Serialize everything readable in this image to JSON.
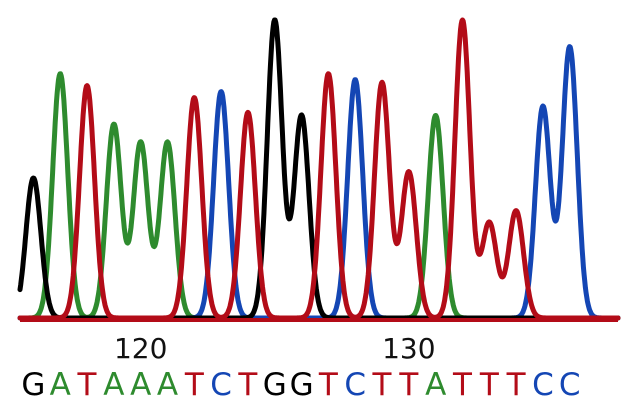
{
  "colors": {
    "A": "#2e8b2e",
    "T": "#b30c18",
    "C": "#1446b4",
    "G": "#000000"
  },
  "chart_data": {
    "type": "line",
    "title": "",
    "xlabel": "",
    "ylabel": "",
    "grid": false,
    "legend": "none",
    "xlim": [
      115.5,
      137.8
    ],
    "ylim": [
      0,
      1
    ],
    "position_labels": [
      {
        "position": 120,
        "text": "120"
      },
      {
        "position": 130,
        "text": "130"
      }
    ],
    "base_calls": [
      {
        "pos": 116,
        "base": "G",
        "peak": 0.47
      },
      {
        "pos": 117,
        "base": "A",
        "peak": 0.82
      },
      {
        "pos": 118,
        "base": "T",
        "peak": 0.78
      },
      {
        "pos": 119,
        "base": "A",
        "peak": 0.65
      },
      {
        "pos": 120,
        "base": "A",
        "peak": 0.59
      },
      {
        "pos": 121,
        "base": "A",
        "peak": 0.59
      },
      {
        "pos": 122,
        "base": "T",
        "peak": 0.74
      },
      {
        "pos": 123,
        "base": "C",
        "peak": 0.76
      },
      {
        "pos": 124,
        "base": "T",
        "peak": 0.69
      },
      {
        "pos": 125,
        "base": "G",
        "peak": 1.0
      },
      {
        "pos": 126,
        "base": "G",
        "peak": 0.68
      },
      {
        "pos": 127,
        "base": "T",
        "peak": 0.82
      },
      {
        "pos": 128,
        "base": "C",
        "peak": 0.8
      },
      {
        "pos": 129,
        "base": "T",
        "peak": 0.79
      },
      {
        "pos": 130,
        "base": "T",
        "peak": 0.49
      },
      {
        "pos": 131,
        "base": "A",
        "peak": 0.68
      },
      {
        "pos": 132,
        "base": "T",
        "peak": 1.0
      },
      {
        "pos": 133,
        "base": "T",
        "peak": 0.32
      },
      {
        "pos": 134,
        "base": "T",
        "peak": 0.36
      },
      {
        "pos": 135,
        "base": "C",
        "peak": 0.71
      },
      {
        "pos": 136,
        "base": "C",
        "peak": 0.91
      }
    ],
    "series": [
      {
        "base": "A"
      },
      {
        "base": "T"
      },
      {
        "base": "C"
      },
      {
        "base": "G"
      }
    ]
  }
}
